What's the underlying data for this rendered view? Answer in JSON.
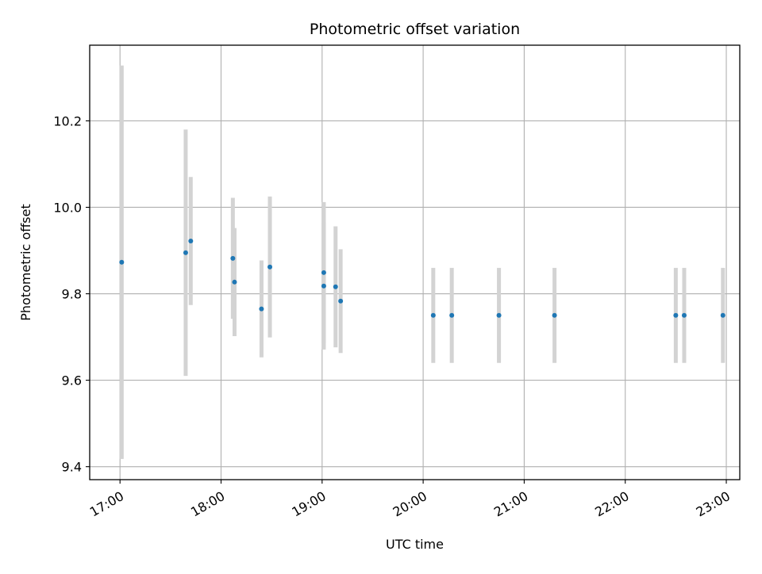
{
  "chart_data": {
    "type": "scatter",
    "title": "Photometric offset variation",
    "xlabel": "UTC time",
    "ylabel": "Photometric offset",
    "x_axis_format": "HH:MM",
    "xlim": [
      "16:42",
      "23:08"
    ],
    "ylim": [
      9.37,
      10.375
    ],
    "x_ticks": [
      "17:00",
      "18:00",
      "19:00",
      "20:00",
      "21:00",
      "22:00",
      "23:00"
    ],
    "y_ticks": [
      9.4,
      9.6,
      9.8,
      10.0,
      10.2
    ],
    "y_tick_labels": [
      "9.4",
      "9.6",
      "9.8",
      "10.0",
      "10.2"
    ],
    "grid": true,
    "legend": "none",
    "colors": {
      "points": "#1f77b4",
      "error_bars": "#d3d3d3",
      "grid": "#b0b0b0"
    },
    "points": [
      {
        "x": "17:01",
        "y": 9.873,
        "yerr": 0.455
      },
      {
        "x": "17:39",
        "y": 9.895,
        "yerr": 0.285
      },
      {
        "x": "17:42",
        "y": 9.922,
        "yerr": 0.148
      },
      {
        "x": "18:07",
        "y": 9.882,
        "yerr": 0.14
      },
      {
        "x": "18:08",
        "y": 9.827,
        "yerr": 0.125
      },
      {
        "x": "18:24",
        "y": 9.765,
        "yerr": 0.112
      },
      {
        "x": "18:29",
        "y": 9.862,
        "yerr": 0.163
      },
      {
        "x": "19:01",
        "y": 9.849,
        "yerr": 0.163
      },
      {
        "x": "19:01",
        "y": 9.818,
        "yerr": 0.147
      },
      {
        "x": "19:08",
        "y": 9.816,
        "yerr": 0.14
      },
      {
        "x": "19:11",
        "y": 9.783,
        "yerr": 0.12
      },
      {
        "x": "20:06",
        "y": 9.75,
        "yerr": 0.11
      },
      {
        "x": "20:17",
        "y": 9.75,
        "yerr": 0.11
      },
      {
        "x": "20:45",
        "y": 9.75,
        "yerr": 0.11
      },
      {
        "x": "21:18",
        "y": 9.75,
        "yerr": 0.11
      },
      {
        "x": "22:30",
        "y": 9.75,
        "yerr": 0.11
      },
      {
        "x": "22:35",
        "y": 9.75,
        "yerr": 0.11
      },
      {
        "x": "22:58",
        "y": 9.75,
        "yerr": 0.11
      }
    ]
  }
}
